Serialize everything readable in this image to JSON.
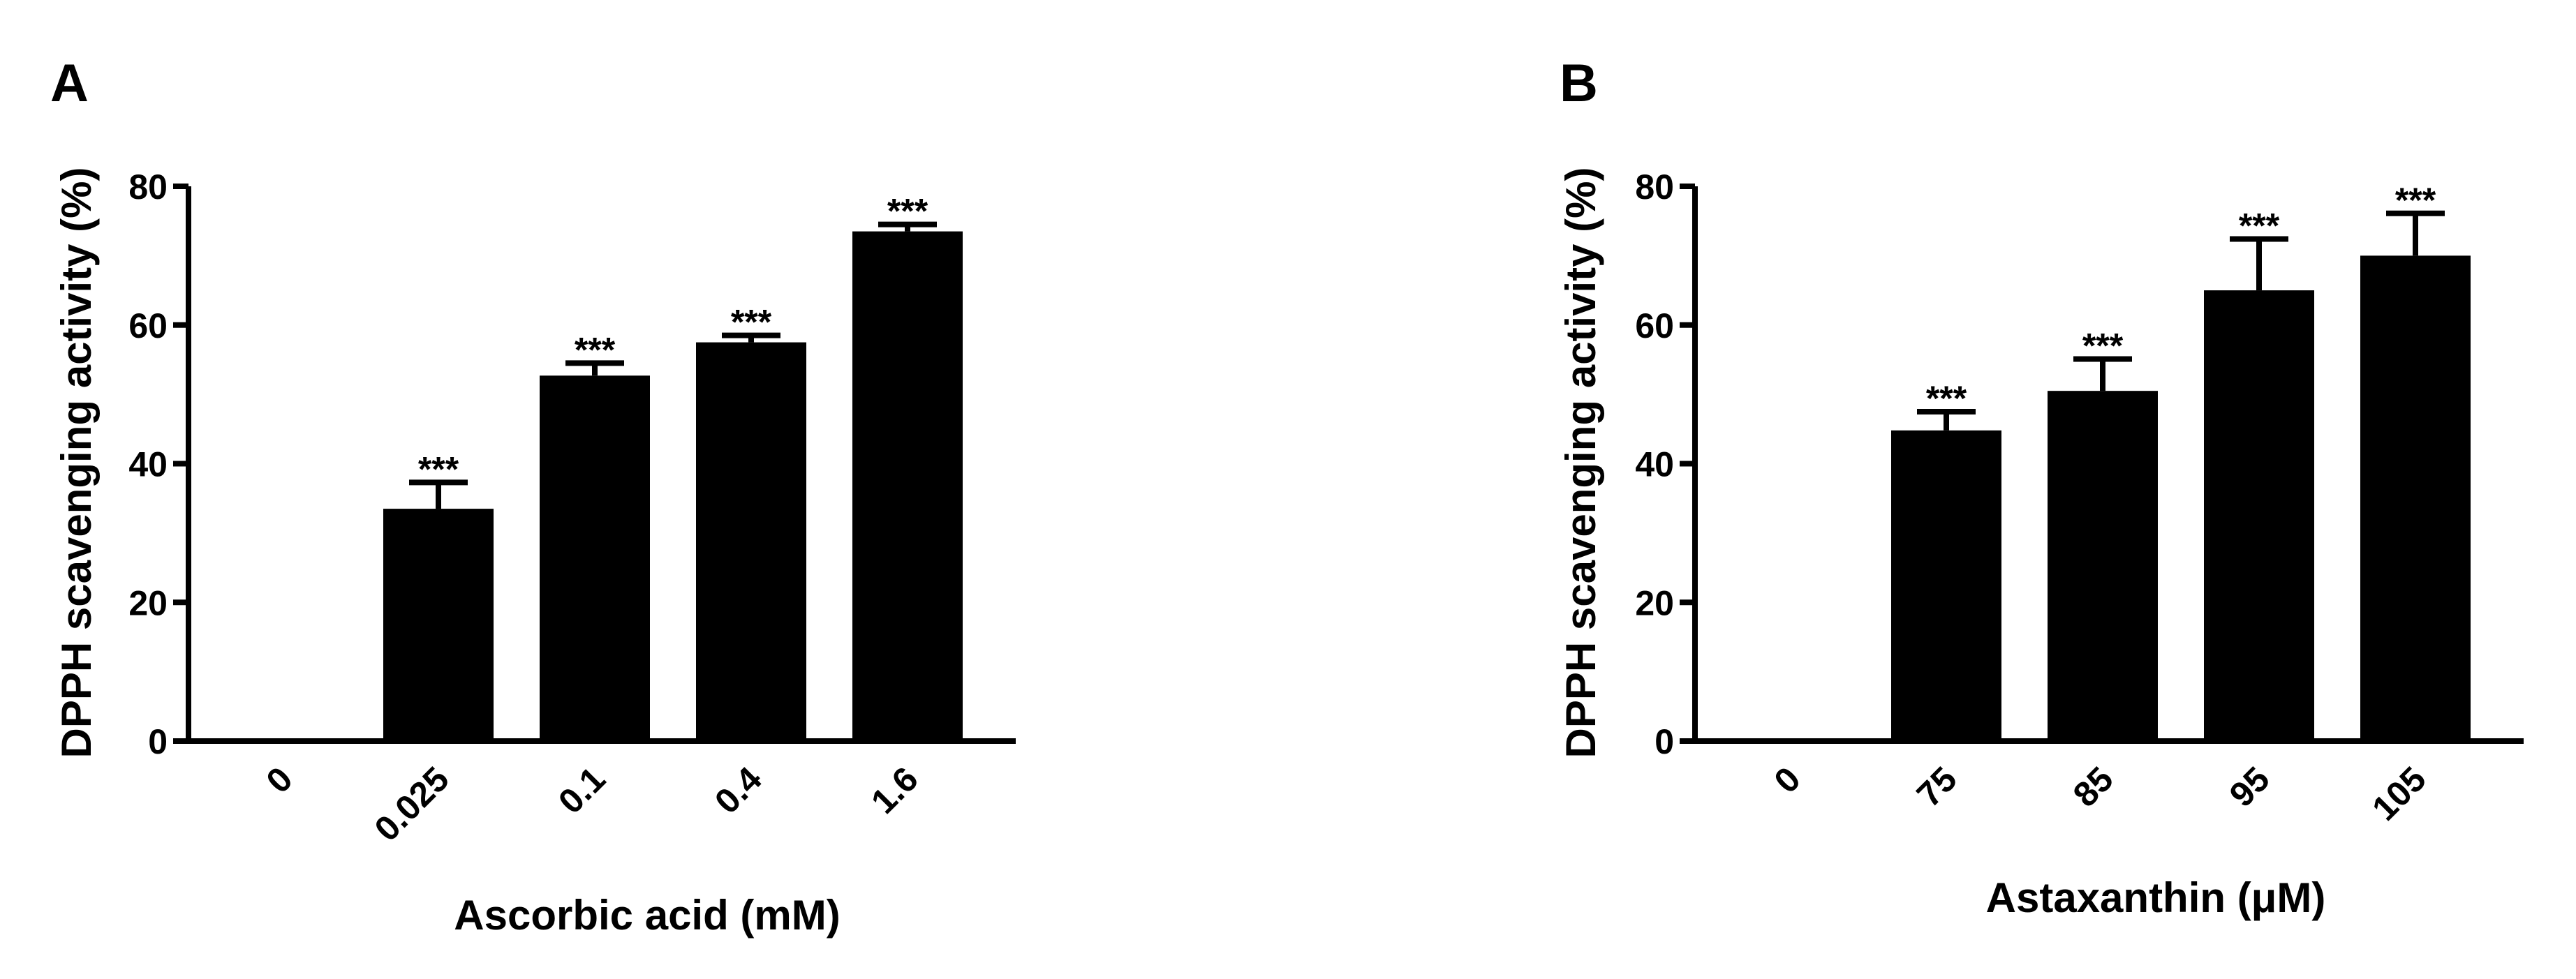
{
  "colors": {
    "bar": "#000000",
    "axis": "#000000",
    "background": "#ffffff"
  },
  "chart_data": [
    {
      "panel_label": "A",
      "type": "bar",
      "categories": [
        "0",
        "0.025",
        "0.1",
        "0.4",
        "1.6"
      ],
      "values": [
        0,
        33.5,
        52.7,
        57.5,
        73.5
      ],
      "errors": [
        0,
        3.8,
        1.8,
        1.0,
        1.0
      ],
      "annotations": [
        "",
        "***",
        "***",
        "***",
        "***"
      ],
      "xlabel": "Ascorbic acid (mM)",
      "ylabel": "DPPH  scavenging activity (%)",
      "ylim": [
        0,
        80
      ],
      "yticks": [
        "0",
        "20",
        "40",
        "60",
        "80"
      ],
      "grid": false,
      "legend": "none"
    },
    {
      "panel_label": "B",
      "type": "bar",
      "categories": [
        "0",
        "75",
        "85",
        "95",
        "105"
      ],
      "values": [
        0,
        44.8,
        50.5,
        65.0,
        70.0
      ],
      "errors": [
        0,
        2.7,
        4.6,
        7.4,
        6.1
      ],
      "annotations": [
        "",
        "***",
        "***",
        "***",
        "***"
      ],
      "xlabel": "Astaxanthin (μM)",
      "ylabel": "DPPH  scavenging activity (%)",
      "ylim": [
        0,
        80
      ],
      "yticks": [
        "0",
        "20",
        "40",
        "60",
        "80"
      ],
      "grid": false,
      "legend": "none"
    }
  ]
}
